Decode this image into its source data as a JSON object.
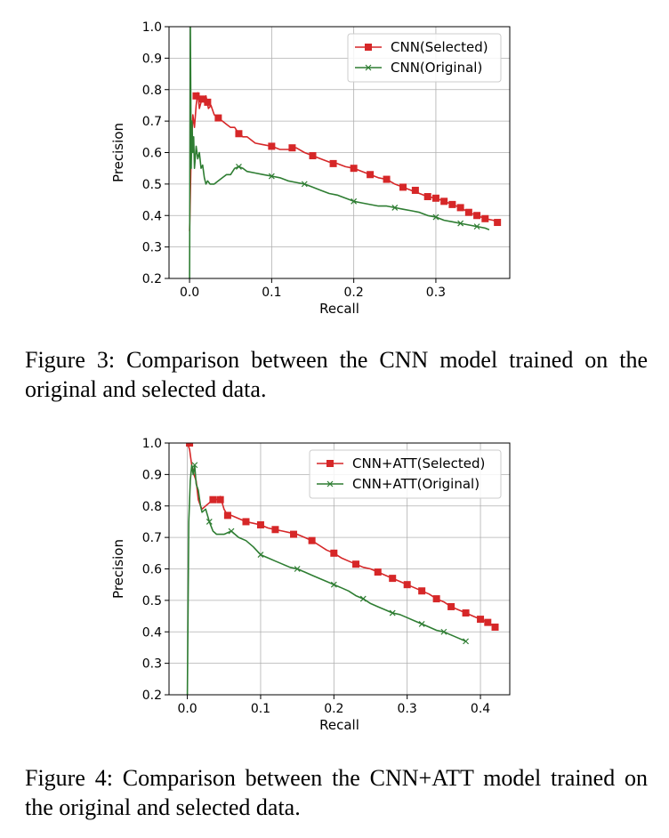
{
  "chart_data": [
    {
      "type": "line",
      "xlabel": "Recall",
      "ylabel": "Precision",
      "xlim": [
        -0.025,
        0.39
      ],
      "ylim": [
        0.2,
        1.0
      ],
      "xticks": [
        0.0,
        0.1,
        0.2,
        0.3
      ],
      "xtick_labels": [
        "0.0",
        "0.1",
        "0.2",
        "0.3"
      ],
      "yticks": [
        0.2,
        0.3,
        0.4,
        0.5,
        0.6,
        0.7,
        0.8,
        0.9,
        1.0
      ],
      "ytick_labels": [
        "0.2",
        "0.3",
        "0.4",
        "0.5",
        "0.6",
        "0.7",
        "0.8",
        "0.9",
        "1.0"
      ],
      "grid": true,
      "legend": "upper-right",
      "series": [
        {
          "name": "CNN(Selected)",
          "color": "#d62728",
          "marker": "square",
          "x": [
            0.0,
            0.002,
            0.004,
            0.006,
            0.008,
            0.01,
            0.012,
            0.015,
            0.018,
            0.02,
            0.023,
            0.026,
            0.03,
            0.035,
            0.04,
            0.045,
            0.05,
            0.055,
            0.06,
            0.065,
            0.07,
            0.08,
            0.09,
            0.1,
            0.11,
            0.12,
            0.13,
            0.14,
            0.15,
            0.16,
            0.17,
            0.18,
            0.19,
            0.2,
            0.21,
            0.22,
            0.23,
            0.24,
            0.25,
            0.26,
            0.27,
            0.28,
            0.29,
            0.3,
            0.31,
            0.32,
            0.33,
            0.34,
            0.35,
            0.36,
            0.37,
            0.377
          ],
          "y": [
            0.35,
            0.6,
            0.72,
            0.68,
            0.75,
            0.79,
            0.74,
            0.77,
            0.76,
            0.78,
            0.74,
            0.75,
            0.72,
            0.71,
            0.7,
            0.69,
            0.68,
            0.68,
            0.66,
            0.65,
            0.65,
            0.63,
            0.625,
            0.62,
            0.61,
            0.61,
            0.615,
            0.6,
            0.59,
            0.58,
            0.57,
            0.565,
            0.555,
            0.55,
            0.54,
            0.53,
            0.52,
            0.515,
            0.5,
            0.49,
            0.48,
            0.47,
            0.46,
            0.455,
            0.445,
            0.435,
            0.425,
            0.41,
            0.4,
            0.39,
            0.385,
            0.375
          ],
          "marker_x": [
            0.008,
            0.015,
            0.022,
            0.035,
            0.06,
            0.1,
            0.125,
            0.15,
            0.175,
            0.2,
            0.22,
            0.24,
            0.26,
            0.275,
            0.29,
            0.3,
            0.31,
            0.32,
            0.33,
            0.34,
            0.35,
            0.36,
            0.375
          ],
          "marker_y": [
            0.78,
            0.77,
            0.76,
            0.71,
            0.66,
            0.62,
            0.615,
            0.59,
            0.565,
            0.55,
            0.53,
            0.515,
            0.49,
            0.48,
            0.46,
            0.455,
            0.445,
            0.435,
            0.425,
            0.41,
            0.4,
            0.39,
            0.378
          ]
        },
        {
          "name": "CNN(Original)",
          "color": "#2e7d32",
          "marker": "x",
          "x": [
            0.0,
            0.001,
            0.002,
            0.003,
            0.004,
            0.005,
            0.006,
            0.008,
            0.01,
            0.012,
            0.014,
            0.016,
            0.018,
            0.02,
            0.022,
            0.025,
            0.03,
            0.035,
            0.04,
            0.045,
            0.05,
            0.055,
            0.06,
            0.065,
            0.07,
            0.08,
            0.09,
            0.1,
            0.11,
            0.12,
            0.13,
            0.14,
            0.15,
            0.16,
            0.17,
            0.18,
            0.19,
            0.2,
            0.21,
            0.22,
            0.23,
            0.24,
            0.25,
            0.26,
            0.27,
            0.28,
            0.29,
            0.3,
            0.31,
            0.32,
            0.33,
            0.34,
            0.35,
            0.36,
            0.365
          ],
          "y": [
            0.2,
            1.0,
            0.55,
            0.7,
            0.6,
            0.65,
            0.55,
            0.62,
            0.58,
            0.6,
            0.55,
            0.56,
            0.52,
            0.5,
            0.51,
            0.5,
            0.5,
            0.51,
            0.52,
            0.53,
            0.53,
            0.55,
            0.555,
            0.55,
            0.54,
            0.535,
            0.53,
            0.525,
            0.52,
            0.51,
            0.505,
            0.5,
            0.49,
            0.48,
            0.47,
            0.465,
            0.455,
            0.445,
            0.44,
            0.435,
            0.43,
            0.43,
            0.425,
            0.42,
            0.415,
            0.41,
            0.4,
            0.395,
            0.385,
            0.38,
            0.375,
            0.37,
            0.365,
            0.36,
            0.355
          ],
          "marker_x": [
            0.06,
            0.1,
            0.14,
            0.2,
            0.25,
            0.3,
            0.33,
            0.35
          ],
          "marker_y": [
            0.555,
            0.525,
            0.5,
            0.445,
            0.425,
            0.395,
            0.375,
            0.365
          ]
        }
      ]
    },
    {
      "type": "line",
      "xlabel": "Recall",
      "ylabel": "Precision",
      "xlim": [
        -0.025,
        0.44
      ],
      "ylim": [
        0.2,
        1.0
      ],
      "xticks": [
        0.0,
        0.1,
        0.2,
        0.3,
        0.4
      ],
      "xtick_labels": [
        "0.0",
        "0.1",
        "0.2",
        "0.3",
        "0.4"
      ],
      "yticks": [
        0.2,
        0.3,
        0.4,
        0.5,
        0.6,
        0.7,
        0.8,
        0.9,
        1.0
      ],
      "ytick_labels": [
        "0.2",
        "0.3",
        "0.4",
        "0.5",
        "0.6",
        "0.7",
        "0.8",
        "0.9",
        "1.0"
      ],
      "grid": true,
      "legend": "upper-right",
      "series": [
        {
          "name": "CNN+ATT(Selected)",
          "color": "#d62728",
          "marker": "square",
          "x": [
            0.0,
            0.003,
            0.006,
            0.009,
            0.012,
            0.015,
            0.018,
            0.02,
            0.025,
            0.03,
            0.035,
            0.04,
            0.045,
            0.05,
            0.055,
            0.06,
            0.07,
            0.08,
            0.09,
            0.1,
            0.11,
            0.12,
            0.13,
            0.14,
            0.15,
            0.16,
            0.17,
            0.18,
            0.19,
            0.2,
            0.21,
            0.22,
            0.23,
            0.24,
            0.25,
            0.26,
            0.27,
            0.28,
            0.29,
            0.3,
            0.31,
            0.32,
            0.33,
            0.34,
            0.35,
            0.36,
            0.37,
            0.38,
            0.39,
            0.4,
            0.41,
            0.42
          ],
          "y": [
            1.0,
            0.98,
            0.93,
            0.9,
            0.88,
            0.82,
            0.8,
            0.79,
            0.8,
            0.81,
            0.82,
            0.82,
            0.83,
            0.79,
            0.77,
            0.77,
            0.76,
            0.75,
            0.745,
            0.74,
            0.73,
            0.725,
            0.72,
            0.715,
            0.71,
            0.7,
            0.69,
            0.675,
            0.66,
            0.65,
            0.635,
            0.625,
            0.615,
            0.605,
            0.6,
            0.59,
            0.58,
            0.57,
            0.56,
            0.55,
            0.54,
            0.53,
            0.52,
            0.505,
            0.495,
            0.48,
            0.47,
            0.46,
            0.45,
            0.44,
            0.43,
            0.415
          ],
          "marker_x": [
            0.003,
            0.035,
            0.045,
            0.055,
            0.08,
            0.1,
            0.12,
            0.145,
            0.17,
            0.2,
            0.23,
            0.26,
            0.28,
            0.3,
            0.32,
            0.34,
            0.36,
            0.38,
            0.4,
            0.41,
            0.42
          ],
          "marker_y": [
            1.0,
            0.82,
            0.82,
            0.77,
            0.75,
            0.74,
            0.725,
            0.71,
            0.69,
            0.65,
            0.615,
            0.59,
            0.57,
            0.55,
            0.53,
            0.505,
            0.48,
            0.46,
            0.44,
            0.43,
            0.415
          ]
        },
        {
          "name": "CNN+ATT(Original)",
          "color": "#2e7d32",
          "marker": "x",
          "x": [
            0.0,
            0.002,
            0.004,
            0.006,
            0.008,
            0.01,
            0.012,
            0.015,
            0.018,
            0.02,
            0.025,
            0.03,
            0.035,
            0.04,
            0.05,
            0.06,
            0.07,
            0.08,
            0.09,
            0.1,
            0.11,
            0.12,
            0.13,
            0.14,
            0.15,
            0.16,
            0.17,
            0.18,
            0.19,
            0.2,
            0.21,
            0.22,
            0.23,
            0.24,
            0.25,
            0.26,
            0.27,
            0.28,
            0.29,
            0.3,
            0.31,
            0.32,
            0.33,
            0.34,
            0.35,
            0.36,
            0.37,
            0.38
          ],
          "y": [
            0.2,
            0.75,
            0.88,
            0.93,
            0.9,
            0.93,
            0.87,
            0.85,
            0.8,
            0.78,
            0.79,
            0.75,
            0.72,
            0.71,
            0.71,
            0.72,
            0.7,
            0.69,
            0.67,
            0.645,
            0.635,
            0.625,
            0.615,
            0.605,
            0.6,
            0.59,
            0.58,
            0.57,
            0.56,
            0.55,
            0.54,
            0.53,
            0.515,
            0.505,
            0.49,
            0.48,
            0.47,
            0.46,
            0.455,
            0.445,
            0.435,
            0.425,
            0.415,
            0.405,
            0.4,
            0.39,
            0.38,
            0.37
          ],
          "marker_x": [
            0.01,
            0.03,
            0.06,
            0.1,
            0.15,
            0.2,
            0.24,
            0.28,
            0.32,
            0.35,
            0.38
          ],
          "marker_y": [
            0.93,
            0.75,
            0.72,
            0.645,
            0.6,
            0.55,
            0.505,
            0.46,
            0.425,
            0.4,
            0.37
          ]
        }
      ]
    }
  ],
  "captions": [
    "Figure 3: Comparison between the CNN model trained on the original and selected data.",
    "Figure 4: Comparison between the CNN+ATT model trained on the original and selected data."
  ]
}
